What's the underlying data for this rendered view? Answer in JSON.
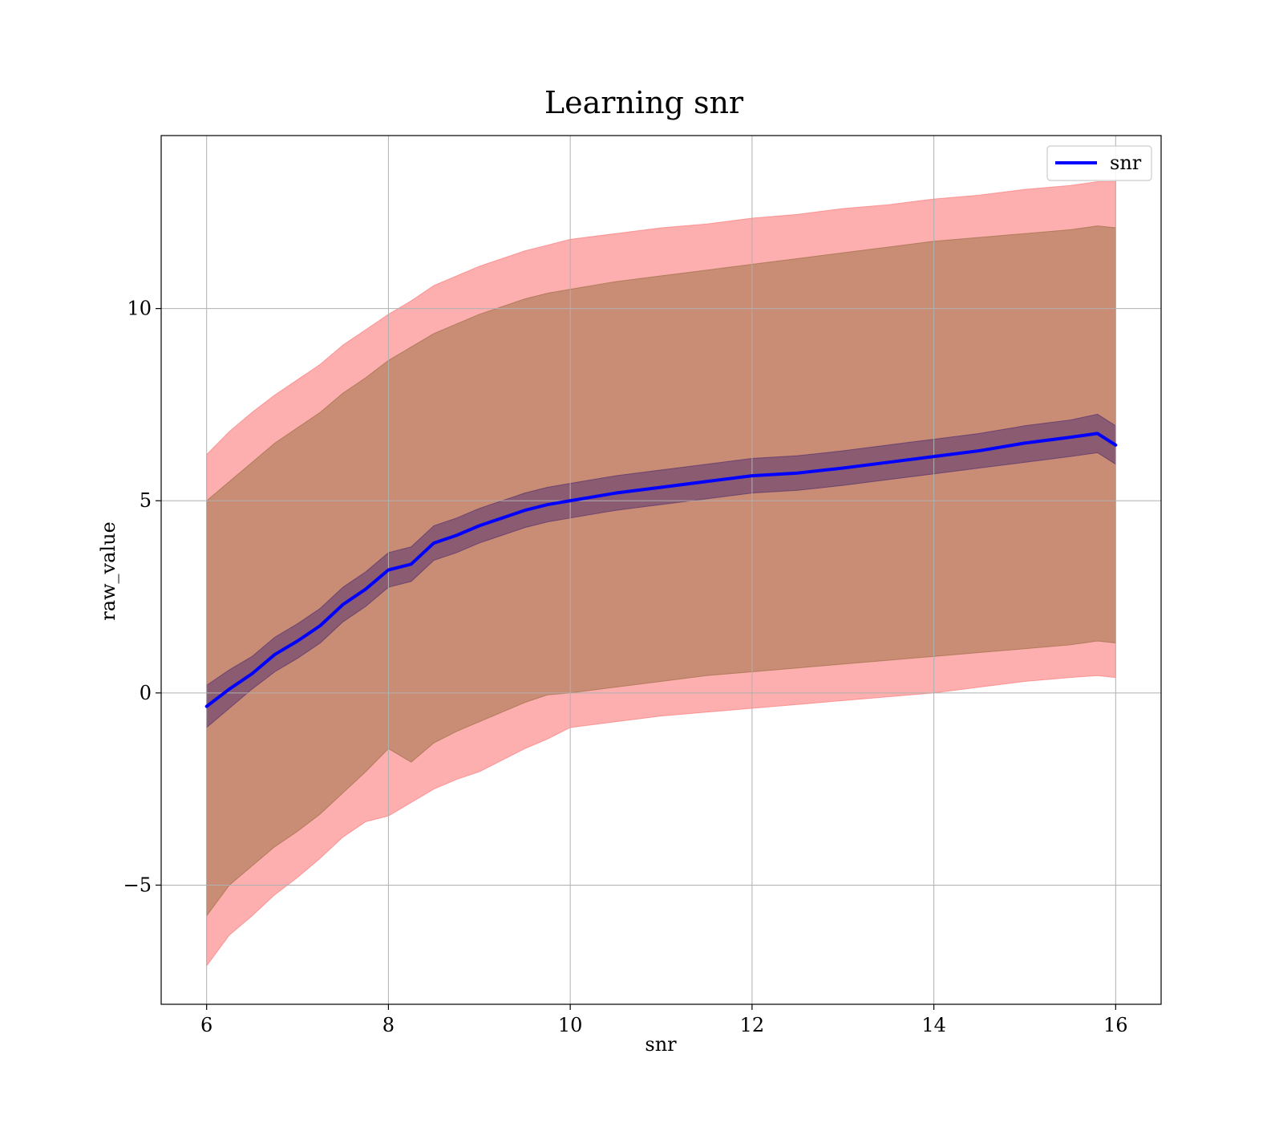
{
  "chart_data": {
    "type": "area",
    "title": "Learning snr",
    "xlabel": "snr",
    "ylabel": "raw_value",
    "xlim": [
      5.5,
      16.5
    ],
    "ylim": [
      -8.1,
      14.5
    ],
    "xticks": [
      6,
      8,
      10,
      12,
      14,
      16
    ],
    "xtick_labels": [
      "6",
      "8",
      "10",
      "12",
      "14",
      "16"
    ],
    "yticks": [
      -5,
      0,
      5,
      10
    ],
    "ytick_labels": [
      "−5",
      "0",
      "5",
      "10"
    ],
    "grid": true,
    "legend": {
      "placement": "top-right",
      "entries": [
        {
          "label": "snr",
          "color": "#0000ff"
        }
      ]
    },
    "colors": {
      "mean_line": "#0000ff",
      "outer_band": "#fc6e6e",
      "middle_band": "#95693c",
      "inner_band": "#4b2a6e"
    },
    "x": [
      6.0,
      6.25,
      6.5,
      6.75,
      7.0,
      7.25,
      7.5,
      7.75,
      8.0,
      8.25,
      8.5,
      8.75,
      9.0,
      9.25,
      9.5,
      9.75,
      10.0,
      10.5,
      11.0,
      11.5,
      12.0,
      12.5,
      13.0,
      13.5,
      14.0,
      14.5,
      15.0,
      15.5,
      15.8,
      16.0
    ],
    "series": [
      {
        "name": "snr",
        "kind": "mean",
        "values": [
          -0.35,
          0.1,
          0.5,
          1.0,
          1.35,
          1.75,
          2.3,
          2.7,
          3.2,
          3.35,
          3.9,
          4.1,
          4.35,
          4.55,
          4.75,
          4.9,
          5.0,
          5.2,
          5.35,
          5.5,
          5.65,
          5.72,
          5.85,
          6.0,
          6.15,
          6.3,
          6.5,
          6.65,
          6.75,
          6.45
        ]
      },
      {
        "kind": "inner_band",
        "lower": [
          -0.9,
          -0.4,
          0.1,
          0.55,
          0.9,
          1.3,
          1.85,
          2.25,
          2.75,
          2.9,
          3.45,
          3.65,
          3.9,
          4.1,
          4.3,
          4.45,
          4.55,
          4.75,
          4.9,
          5.05,
          5.2,
          5.27,
          5.4,
          5.55,
          5.7,
          5.85,
          6.0,
          6.15,
          6.25,
          5.95
        ],
        "upper": [
          0.2,
          0.6,
          0.95,
          1.45,
          1.8,
          2.2,
          2.75,
          3.15,
          3.65,
          3.8,
          4.35,
          4.55,
          4.8,
          5.0,
          5.2,
          5.35,
          5.45,
          5.65,
          5.8,
          5.95,
          6.1,
          6.17,
          6.3,
          6.45,
          6.6,
          6.75,
          6.95,
          7.1,
          7.25,
          6.95
        ]
      },
      {
        "kind": "middle_band",
        "lower": [
          -5.8,
          -5.0,
          -4.5,
          -4.0,
          -3.6,
          -3.15,
          -2.6,
          -2.05,
          -1.45,
          -1.8,
          -1.3,
          -1.0,
          -0.75,
          -0.5,
          -0.25,
          -0.05,
          0.0,
          0.15,
          0.3,
          0.45,
          0.55,
          0.65,
          0.75,
          0.85,
          0.95,
          1.05,
          1.15,
          1.25,
          1.35,
          1.3
        ],
        "upper": [
          5.0,
          5.5,
          6.0,
          6.5,
          6.9,
          7.3,
          7.8,
          8.2,
          8.65,
          9.0,
          9.35,
          9.6,
          9.85,
          10.05,
          10.25,
          10.4,
          10.5,
          10.7,
          10.85,
          11.0,
          11.15,
          11.3,
          11.45,
          11.6,
          11.75,
          11.85,
          11.95,
          12.05,
          12.15,
          12.1
        ]
      },
      {
        "kind": "outer_band",
        "lower": [
          -7.1,
          -6.3,
          -5.8,
          -5.25,
          -4.8,
          -4.3,
          -3.75,
          -3.35,
          -3.2,
          -2.85,
          -2.5,
          -2.25,
          -2.05,
          -1.75,
          -1.45,
          -1.2,
          -0.9,
          -0.75,
          -0.6,
          -0.5,
          -0.4,
          -0.3,
          -0.2,
          -0.1,
          0.0,
          0.15,
          0.3,
          0.4,
          0.45,
          0.4
        ],
        "upper": [
          6.2,
          6.8,
          7.3,
          7.75,
          8.15,
          8.55,
          9.05,
          9.45,
          9.85,
          10.2,
          10.6,
          10.85,
          11.1,
          11.3,
          11.5,
          11.65,
          11.8,
          11.95,
          12.1,
          12.2,
          12.35,
          12.45,
          12.6,
          12.7,
          12.85,
          12.95,
          13.1,
          13.2,
          13.3,
          13.3
        ]
      }
    ]
  }
}
